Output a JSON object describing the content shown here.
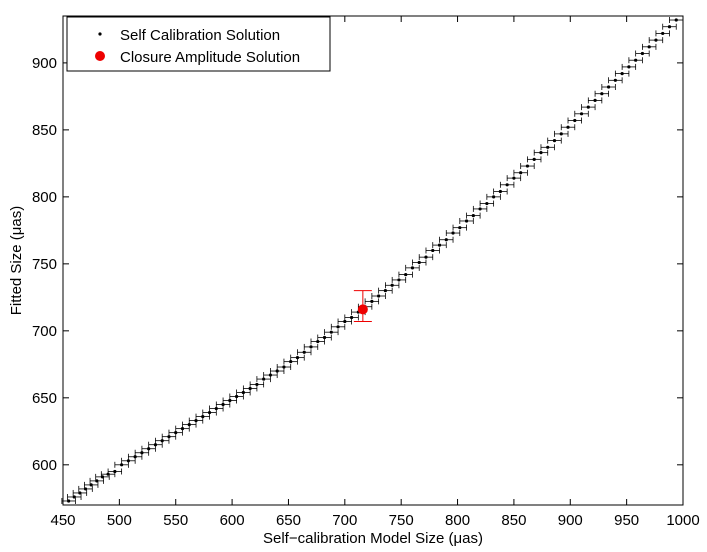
{
  "chart_data": {
    "type": "scatter",
    "xlabel": "Self−calibration Model Size (μas)",
    "ylabel": "Fitted Size (μas)",
    "xlim": [
      450,
      1000
    ],
    "ylim": [
      570,
      935
    ],
    "xticks": [
      450,
      500,
      550,
      600,
      650,
      700,
      750,
      800,
      850,
      900,
      950,
      1000
    ],
    "yticks": [
      600,
      650,
      700,
      750,
      800,
      850,
      900
    ],
    "grid": false,
    "legend_position": "top-left",
    "series": [
      {
        "name": "Self Calibration Solution",
        "marker": "dot",
        "color": "#000000",
        "x_error_halfwidth": 6,
        "points": [
          {
            "x": 455,
            "y": 573
          },
          {
            "x": 460,
            "y": 576
          },
          {
            "x": 465,
            "y": 579
          },
          {
            "x": 470,
            "y": 582
          },
          {
            "x": 475,
            "y": 585
          },
          {
            "x": 480,
            "y": 588
          },
          {
            "x": 485,
            "y": 591
          },
          {
            "x": 490,
            "y": 593
          },
          {
            "x": 496,
            "y": 595
          },
          {
            "x": 502,
            "y": 600
          },
          {
            "x": 508,
            "y": 603
          },
          {
            "x": 514,
            "y": 606
          },
          {
            "x": 520,
            "y": 609
          },
          {
            "x": 526,
            "y": 612
          },
          {
            "x": 532,
            "y": 615
          },
          {
            "x": 538,
            "y": 618
          },
          {
            "x": 544,
            "y": 621
          },
          {
            "x": 550,
            "y": 624
          },
          {
            "x": 556,
            "y": 627
          },
          {
            "x": 562,
            "y": 630
          },
          {
            "x": 568,
            "y": 633
          },
          {
            "x": 574,
            "y": 636
          },
          {
            "x": 580,
            "y": 639
          },
          {
            "x": 586,
            "y": 642
          },
          {
            "x": 592,
            "y": 645
          },
          {
            "x": 598,
            "y": 648
          },
          {
            "x": 604,
            "y": 651
          },
          {
            "x": 610,
            "y": 654
          },
          {
            "x": 616,
            "y": 657
          },
          {
            "x": 622,
            "y": 660
          },
          {
            "x": 628,
            "y": 664
          },
          {
            "x": 634,
            "y": 667
          },
          {
            "x": 640,
            "y": 670
          },
          {
            "x": 646,
            "y": 673
          },
          {
            "x": 652,
            "y": 677
          },
          {
            "x": 658,
            "y": 680
          },
          {
            "x": 664,
            "y": 684
          },
          {
            "x": 670,
            "y": 688
          },
          {
            "x": 676,
            "y": 692
          },
          {
            "x": 682,
            "y": 695
          },
          {
            "x": 688,
            "y": 699
          },
          {
            "x": 694,
            "y": 703
          },
          {
            "x": 700,
            "y": 707
          },
          {
            "x": 706,
            "y": 710
          },
          {
            "x": 712,
            "y": 714
          },
          {
            "x": 718,
            "y": 718
          },
          {
            "x": 724,
            "y": 722
          },
          {
            "x": 730,
            "y": 726
          },
          {
            "x": 736,
            "y": 730
          },
          {
            "x": 742,
            "y": 734
          },
          {
            "x": 748,
            "y": 738
          },
          {
            "x": 754,
            "y": 742
          },
          {
            "x": 760,
            "y": 747
          },
          {
            "x": 766,
            "y": 751
          },
          {
            "x": 772,
            "y": 755
          },
          {
            "x": 778,
            "y": 760
          },
          {
            "x": 784,
            "y": 764
          },
          {
            "x": 790,
            "y": 768
          },
          {
            "x": 796,
            "y": 773
          },
          {
            "x": 802,
            "y": 777
          },
          {
            "x": 808,
            "y": 782
          },
          {
            "x": 814,
            "y": 786
          },
          {
            "x": 820,
            "y": 791
          },
          {
            "x": 826,
            "y": 795
          },
          {
            "x": 832,
            "y": 800
          },
          {
            "x": 838,
            "y": 804
          },
          {
            "x": 844,
            "y": 809
          },
          {
            "x": 850,
            "y": 814
          },
          {
            "x": 856,
            "y": 818
          },
          {
            "x": 862,
            "y": 823
          },
          {
            "x": 868,
            "y": 828
          },
          {
            "x": 874,
            "y": 833
          },
          {
            "x": 880,
            "y": 837
          },
          {
            "x": 886,
            "y": 842
          },
          {
            "x": 892,
            "y": 847
          },
          {
            "x": 898,
            "y": 852
          },
          {
            "x": 904,
            "y": 857
          },
          {
            "x": 910,
            "y": 862
          },
          {
            "x": 916,
            "y": 867
          },
          {
            "x": 922,
            "y": 872
          },
          {
            "x": 928,
            "y": 877
          },
          {
            "x": 934,
            "y": 882
          },
          {
            "x": 940,
            "y": 887
          },
          {
            "x": 946,
            "y": 892
          },
          {
            "x": 952,
            "y": 897
          },
          {
            "x": 958,
            "y": 902
          },
          {
            "x": 964,
            "y": 907
          },
          {
            "x": 970,
            "y": 912
          },
          {
            "x": 976,
            "y": 917
          },
          {
            "x": 982,
            "y": 922
          },
          {
            "x": 988,
            "y": 927
          },
          {
            "x": 994,
            "y": 932
          }
        ]
      },
      {
        "name": "Closure Amplitude Solution",
        "marker": "filled-circle",
        "color": "#ee0000",
        "points": [
          {
            "x": 716,
            "y": 716,
            "y_err_low": 707,
            "y_err_high": 730
          }
        ]
      }
    ]
  }
}
